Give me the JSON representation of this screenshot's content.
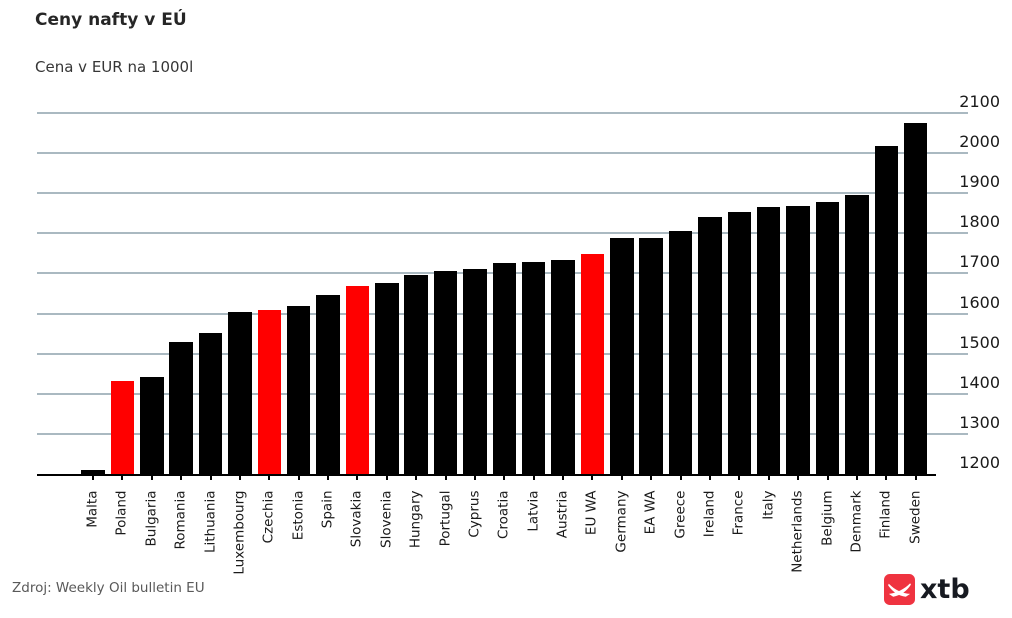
{
  "header": {
    "title": "Ceny nafty v EÚ",
    "subtitle": "Cena v EUR na 1000l"
  },
  "footer": {
    "source": "Zdroj: Weekly Oil bulletin EU"
  },
  "logo": {
    "text": "xtb",
    "badge_color": "#ef3340",
    "glyph": "xtb-swoosh-x-icon"
  },
  "chart_data": {
    "type": "bar",
    "title": "Ceny nafty v EÚ",
    "subtitle": "Cena v EUR na 1000l",
    "source": "Zdroj: Weekly Oil bulletin EU",
    "categories": [
      "Malta",
      "Poland",
      "Bulgaria",
      "Romania",
      "Lithuania",
      "Luxembourg",
      "Czechia",
      "Estonia",
      "Spain",
      "Slovakia",
      "Slovenia",
      "Hungary",
      "Portugal",
      "Cyprus",
      "Croatia",
      "Latvia",
      "Austria",
      "EU WA",
      "Germany",
      "EA WA",
      "Greece",
      "Ireland",
      "France",
      "Italy",
      "Netherlands",
      "Belgium",
      "Denmark",
      "Finland",
      "Sweden"
    ],
    "values": [
      1210,
      1431,
      1442,
      1530,
      1552,
      1604,
      1610,
      1620,
      1647,
      1669,
      1676,
      1696,
      1707,
      1712,
      1726,
      1729,
      1734,
      1748,
      1789,
      1789,
      1806,
      1841,
      1854,
      1865,
      1869,
      1877,
      1896,
      2017,
      2076
    ],
    "highlighted_categories": [
      "Poland",
      "Czechia",
      "Slovakia",
      "EU WA"
    ],
    "bar_color": "#000000",
    "highlight_color": "#ff0000",
    "ylim": [
      1200,
      2100
    ],
    "yticks": [
      1200,
      1300,
      1400,
      1500,
      1600,
      1700,
      1800,
      1900,
      2000,
      2100
    ],
    "y_axis_side": "right",
    "grid": true,
    "gridline_color": "#b0c4cc",
    "legend": "none"
  }
}
